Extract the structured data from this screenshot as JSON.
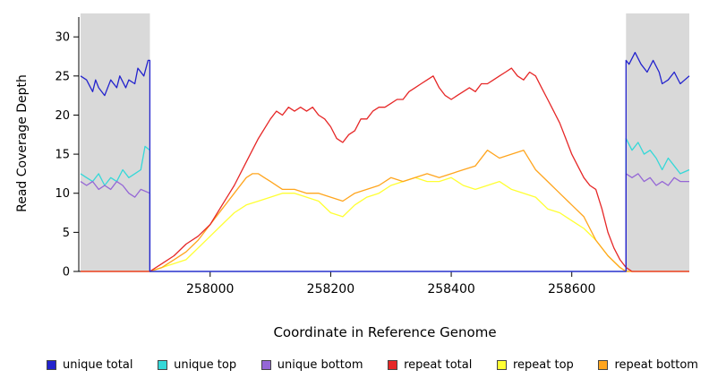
{
  "chart_data": {
    "type": "line",
    "title": "",
    "xlabel": "Coordinate in Reference Genome",
    "ylabel": "Read Coverage Depth",
    "xlim": [
      257785,
      258795
    ],
    "ylim": [
      0,
      33
    ],
    "xticks": [
      258000,
      258200,
      258400,
      258600
    ],
    "yticks": [
      0,
      5,
      10,
      15,
      20,
      25,
      30
    ],
    "grid": false,
    "legend_position": "bottom",
    "shade_color": "#d9d9d9",
    "shaded_regions": [
      {
        "x0": 257785,
        "x1": 257900
      },
      {
        "x0": 258690,
        "x1": 258795
      }
    ],
    "legend": [
      {
        "label": "unique total",
        "color": "#2323cd"
      },
      {
        "label": "unique top",
        "color": "#35d8d8"
      },
      {
        "label": "unique bottom",
        "color": "#9567d6"
      },
      {
        "label": "repeat total",
        "color": "#e62727"
      },
      {
        "label": "repeat top",
        "color": "#ffff33"
      },
      {
        "label": "repeat bottom",
        "color": "#ffa51e"
      }
    ],
    "series": [
      {
        "name": "unique top",
        "color": "#35d8d8",
        "points": [
          [
            257785,
            12.5
          ],
          [
            257795,
            12
          ],
          [
            257805,
            11.5
          ],
          [
            257815,
            12.5
          ],
          [
            257825,
            11
          ],
          [
            257835,
            12
          ],
          [
            257845,
            11.5
          ],
          [
            257855,
            13
          ],
          [
            257865,
            12
          ],
          [
            257875,
            12.5
          ],
          [
            257885,
            13
          ],
          [
            257892,
            16
          ],
          [
            257900,
            15.5
          ],
          [
            257900,
            0
          ],
          [
            258690,
            0
          ],
          [
            258690,
            17
          ],
          [
            258700,
            15.5
          ],
          [
            258710,
            16.5
          ],
          [
            258720,
            15
          ],
          [
            258730,
            15.5
          ],
          [
            258740,
            14.5
          ],
          [
            258750,
            13
          ],
          [
            258760,
            14.5
          ],
          [
            258770,
            13.5
          ],
          [
            258780,
            12.5
          ],
          [
            258795,
            13
          ]
        ]
      },
      {
        "name": "unique bottom",
        "color": "#9567d6",
        "points": [
          [
            257785,
            11.5
          ],
          [
            257795,
            11
          ],
          [
            257805,
            11.5
          ],
          [
            257815,
            10.5
          ],
          [
            257825,
            11
          ],
          [
            257835,
            10.5
          ],
          [
            257845,
            11.5
          ],
          [
            257855,
            11
          ],
          [
            257865,
            10
          ],
          [
            257875,
            9.5
          ],
          [
            257885,
            10.5
          ],
          [
            257900,
            10
          ],
          [
            257900,
            0
          ],
          [
            258690,
            0
          ],
          [
            258690,
            12.5
          ],
          [
            258700,
            12
          ],
          [
            258710,
            12.5
          ],
          [
            258720,
            11.5
          ],
          [
            258730,
            12
          ],
          [
            258740,
            11
          ],
          [
            258750,
            11.5
          ],
          [
            258760,
            11
          ],
          [
            258770,
            12
          ],
          [
            258780,
            11.5
          ],
          [
            258795,
            11.5
          ]
        ]
      },
      {
        "name": "repeat top",
        "color": "#ffff33",
        "points": [
          [
            257785,
            0
          ],
          [
            257900,
            0
          ],
          [
            257920,
            0.5
          ],
          [
            257940,
            1
          ],
          [
            257960,
            1.5
          ],
          [
            257980,
            3
          ],
          [
            258000,
            4.5
          ],
          [
            258020,
            6
          ],
          [
            258040,
            7.5
          ],
          [
            258060,
            8.5
          ],
          [
            258080,
            9
          ],
          [
            258100,
            9.5
          ],
          [
            258120,
            10
          ],
          [
            258140,
            10
          ],
          [
            258160,
            9.5
          ],
          [
            258180,
            9
          ],
          [
            258200,
            7.5
          ],
          [
            258220,
            7
          ],
          [
            258240,
            8.5
          ],
          [
            258260,
            9.5
          ],
          [
            258280,
            10
          ],
          [
            258300,
            11
          ],
          [
            258320,
            11.5
          ],
          [
            258340,
            12
          ],
          [
            258360,
            11.5
          ],
          [
            258380,
            11.5
          ],
          [
            258400,
            12
          ],
          [
            258420,
            11
          ],
          [
            258440,
            10.5
          ],
          [
            258460,
            11
          ],
          [
            258480,
            11.5
          ],
          [
            258500,
            10.5
          ],
          [
            258520,
            10
          ],
          [
            258540,
            9.5
          ],
          [
            258560,
            8
          ],
          [
            258580,
            7.5
          ],
          [
            258600,
            6.5
          ],
          [
            258620,
            5.5
          ],
          [
            258640,
            4
          ],
          [
            258660,
            2
          ],
          [
            258680,
            0.5
          ],
          [
            258690,
            0
          ],
          [
            258795,
            0
          ]
        ]
      },
      {
        "name": "repeat bottom",
        "color": "#ffa51e",
        "points": [
          [
            257785,
            0
          ],
          [
            257900,
            0
          ],
          [
            257920,
            0.5
          ],
          [
            257940,
            1.5
          ],
          [
            257960,
            2.5
          ],
          [
            257980,
            4
          ],
          [
            258000,
            6
          ],
          [
            258020,
            8
          ],
          [
            258040,
            10
          ],
          [
            258060,
            12
          ],
          [
            258070,
            12.5
          ],
          [
            258080,
            12.5
          ],
          [
            258090,
            12
          ],
          [
            258100,
            11.5
          ],
          [
            258120,
            10.5
          ],
          [
            258140,
            10.5
          ],
          [
            258160,
            10
          ],
          [
            258180,
            10
          ],
          [
            258200,
            9.5
          ],
          [
            258220,
            9
          ],
          [
            258240,
            10
          ],
          [
            258260,
            10.5
          ],
          [
            258280,
            11
          ],
          [
            258300,
            12
          ],
          [
            258320,
            11.5
          ],
          [
            258340,
            12
          ],
          [
            258360,
            12.5
          ],
          [
            258380,
            12
          ],
          [
            258400,
            12.5
          ],
          [
            258420,
            13
          ],
          [
            258440,
            13.5
          ],
          [
            258460,
            15.5
          ],
          [
            258480,
            14.5
          ],
          [
            258500,
            15
          ],
          [
            258520,
            15.5
          ],
          [
            258540,
            13
          ],
          [
            258560,
            11.5
          ],
          [
            258580,
            10
          ],
          [
            258600,
            8.5
          ],
          [
            258620,
            7
          ],
          [
            258640,
            4
          ],
          [
            258660,
            2
          ],
          [
            258680,
            0.5
          ],
          [
            258690,
            0
          ],
          [
            258795,
            0
          ]
        ]
      },
      {
        "name": "repeat total",
        "color": "#e62727",
        "points": [
          [
            257785,
            0
          ],
          [
            257900,
            0
          ],
          [
            257920,
            1
          ],
          [
            257940,
            2
          ],
          [
            257960,
            3.5
          ],
          [
            257980,
            4.5
          ],
          [
            258000,
            6
          ],
          [
            258020,
            8.5
          ],
          [
            258040,
            11
          ],
          [
            258060,
            14
          ],
          [
            258080,
            17
          ],
          [
            258100,
            19.5
          ],
          [
            258110,
            20.5
          ],
          [
            258120,
            20
          ],
          [
            258130,
            21
          ],
          [
            258140,
            20.5
          ],
          [
            258150,
            21
          ],
          [
            258160,
            20.5
          ],
          [
            258170,
            21
          ],
          [
            258180,
            20
          ],
          [
            258190,
            19.5
          ],
          [
            258200,
            18.5
          ],
          [
            258210,
            17
          ],
          [
            258220,
            16.5
          ],
          [
            258230,
            17.5
          ],
          [
            258240,
            18
          ],
          [
            258250,
            19.5
          ],
          [
            258260,
            19.5
          ],
          [
            258270,
            20.5
          ],
          [
            258280,
            21
          ],
          [
            258290,
            21
          ],
          [
            258300,
            21.5
          ],
          [
            258310,
            22
          ],
          [
            258320,
            22
          ],
          [
            258330,
            23
          ],
          [
            258340,
            23.5
          ],
          [
            258350,
            24
          ],
          [
            258360,
            24.5
          ],
          [
            258370,
            25
          ],
          [
            258380,
            23.5
          ],
          [
            258390,
            22.5
          ],
          [
            258400,
            22
          ],
          [
            258410,
            22.5
          ],
          [
            258420,
            23
          ],
          [
            258430,
            23.5
          ],
          [
            258440,
            23
          ],
          [
            258450,
            24
          ],
          [
            258460,
            24
          ],
          [
            258470,
            24.5
          ],
          [
            258480,
            25
          ],
          [
            258490,
            25.5
          ],
          [
            258500,
            26
          ],
          [
            258510,
            25
          ],
          [
            258520,
            24.5
          ],
          [
            258530,
            25.5
          ],
          [
            258540,
            25
          ],
          [
            258550,
            23.5
          ],
          [
            258560,
            22
          ],
          [
            258570,
            20.5
          ],
          [
            258580,
            19
          ],
          [
            258590,
            17
          ],
          [
            258600,
            15
          ],
          [
            258610,
            13.5
          ],
          [
            258620,
            12
          ],
          [
            258630,
            11
          ],
          [
            258640,
            10.5
          ],
          [
            258650,
            8
          ],
          [
            258660,
            5
          ],
          [
            258670,
            3
          ],
          [
            258680,
            1.5
          ],
          [
            258690,
            0.5
          ],
          [
            258700,
            0
          ],
          [
            258795,
            0
          ]
        ]
      },
      {
        "name": "unique total",
        "color": "#2323cd",
        "points": [
          [
            257785,
            25
          ],
          [
            257795,
            24.5
          ],
          [
            257805,
            23
          ],
          [
            257810,
            24.5
          ],
          [
            257815,
            23.5
          ],
          [
            257825,
            22.5
          ],
          [
            257835,
            24.5
          ],
          [
            257845,
            23.5
          ],
          [
            257850,
            25
          ],
          [
            257860,
            23.5
          ],
          [
            257865,
            24.5
          ],
          [
            257875,
            24
          ],
          [
            257880,
            26
          ],
          [
            257890,
            25
          ],
          [
            257897,
            27
          ],
          [
            257900,
            27
          ],
          [
            257900,
            0
          ],
          [
            258690,
            0
          ],
          [
            258690,
            27
          ],
          [
            258695,
            26.5
          ],
          [
            258705,
            28
          ],
          [
            258715,
            26.5
          ],
          [
            258725,
            25.5
          ],
          [
            258735,
            27
          ],
          [
            258745,
            25.5
          ],
          [
            258750,
            24
          ],
          [
            258760,
            24.5
          ],
          [
            258770,
            25.5
          ],
          [
            258780,
            24
          ],
          [
            258795,
            25
          ]
        ]
      }
    ]
  }
}
